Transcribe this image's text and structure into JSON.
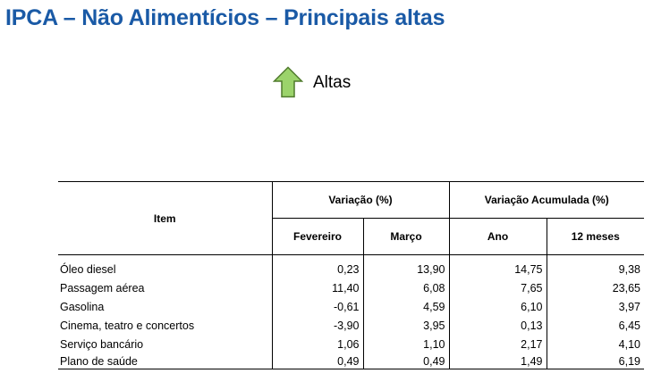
{
  "title": "IPCA – Não Alimentícios – Principais altas",
  "legend": {
    "icon": "up-arrow-icon",
    "label": "Altas",
    "arrow_fill": "#9bd36b",
    "arrow_stroke": "#4f7a2c"
  },
  "table": {
    "item_header": "Item",
    "group_variacao": "Variação (%)",
    "group_acumulada": "Variação Acumulada (%)",
    "sub_fevereiro": "Fevereiro",
    "sub_marco": "Março",
    "sub_ano": "Ano",
    "sub_12meses": "12 meses",
    "rows": [
      {
        "item": "Óleo diesel",
        "fevereiro": "0,23",
        "marco": "13,90",
        "ano": "14,75",
        "doze_meses": "9,38"
      },
      {
        "item": "Passagem aérea",
        "fevereiro": "11,40",
        "marco": "6,08",
        "ano": "7,65",
        "doze_meses": "23,65"
      },
      {
        "item": "Gasolina",
        "fevereiro": "-0,61",
        "marco": "4,59",
        "ano": "6,10",
        "doze_meses": "3,97"
      },
      {
        "item": "Cinema, teatro e concertos",
        "fevereiro": "-3,90",
        "marco": "3,95",
        "ano": "0,13",
        "doze_meses": "6,45"
      },
      {
        "item": "Serviço bancário",
        "fevereiro": "1,06",
        "marco": "1,10",
        "ano": "2,17",
        "doze_meses": "4,10"
      },
      {
        "item": "Plano de saúde",
        "fevereiro": "0,49",
        "marco": "0,49",
        "ano": "1,49",
        "doze_meses": "6,19"
      }
    ]
  },
  "colors": {
    "title": "#1a5aa6"
  }
}
